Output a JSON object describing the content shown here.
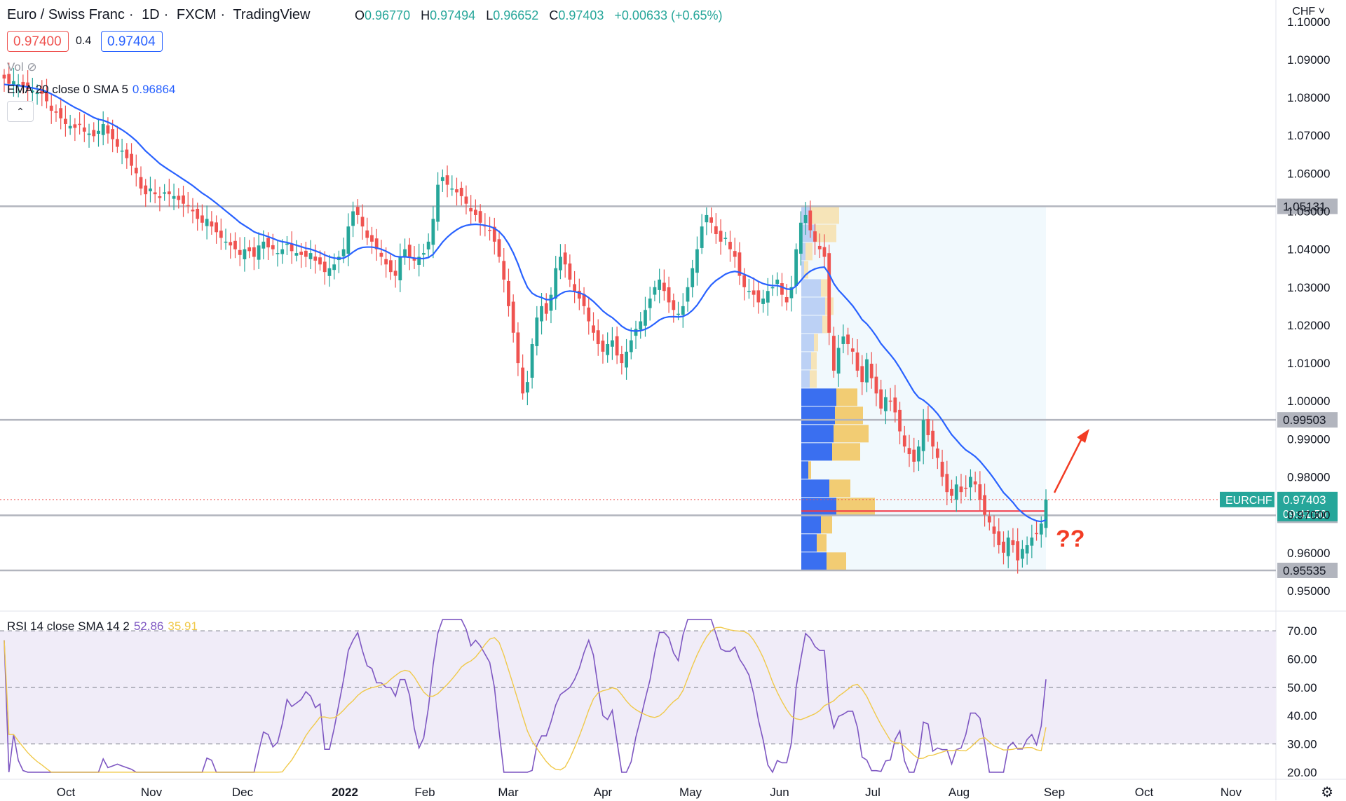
{
  "header": {
    "symbol": "Euro / Swiss Franc",
    "interval": "1D",
    "broker": "FXCM",
    "platform": "TradingView",
    "open_label": "O",
    "open": "0.96770",
    "high_label": "H",
    "high": "0.97494",
    "low_label": "L",
    "low": "0.96652",
    "close_label": "C",
    "close": "0.97403",
    "change": "+0.00633 (+0.65%)"
  },
  "trade": {
    "sell": "0.97400",
    "spread": "0.4",
    "buy": "0.97404"
  },
  "indicators": {
    "vol_label": "Vol",
    "ema_label": "EMA 20 close 0 SMA 5",
    "ema_value": "0.96864",
    "rsi_label": "RSI 14 close SMA 14 2",
    "rsi_value": "52.86",
    "rsi_sma_value": "35.91"
  },
  "currency": "CHF",
  "colors": {
    "up": "#26a69a",
    "down": "#ef5350",
    "ema": "#2962ff",
    "rsi": "#7e57c2",
    "rsi_sma": "#f0c94a",
    "annotation": "#f23c24"
  },
  "annotation_text": "??",
  "price_tag": {
    "label": "EURCHF",
    "price": "0.97403",
    "countdown": "09:41:50"
  },
  "chart_data": {
    "type": "candlestick",
    "y_axis": {
      "ticks": [
        "1.10000",
        "1.09000",
        "1.08000",
        "1.07000",
        "1.06000",
        "1.05000",
        "1.04000",
        "1.03000",
        "1.02000",
        "1.01000",
        "1.00000",
        "0.99000",
        "0.98000",
        "0.97000",
        "0.96000",
        "0.95000"
      ],
      "range": [
        0.945,
        1.102
      ]
    },
    "x_axis": {
      "ticks": [
        "Oct",
        "Nov",
        "Dec",
        "2022",
        "Feb",
        "Mar",
        "Apr",
        "May",
        "Jun",
        "Jul",
        "Aug",
        "Sep",
        "Oct",
        "Nov"
      ]
    },
    "horizontal_levels": [
      "1.05131",
      "0.99503",
      "0.96987",
      "0.95535"
    ],
    "close_series": [
      1.085,
      1.0836,
      1.0843,
      1.0835,
      1.083,
      1.0822,
      1.0818,
      1.0812,
      1.081,
      1.079,
      1.0765,
      1.076,
      1.0745,
      1.073,
      1.0725,
      1.072,
      1.0728,
      1.071,
      1.0705,
      1.0698,
      1.0712,
      1.073,
      1.0705,
      1.069,
      1.067,
      1.066,
      1.064,
      1.062,
      1.06,
      1.056,
      1.0545,
      1.056,
      1.0545,
      1.0535,
      1.055,
      1.0545,
      1.054,
      1.053,
      1.052,
      1.0515,
      1.05,
      1.048,
      1.047,
      1.048,
      1.046,
      1.0445,
      1.043,
      1.042,
      1.041,
      1.04,
      1.0385,
      1.04,
      1.0395,
      1.038,
      1.041,
      1.042,
      1.0405,
      1.04,
      1.039,
      1.04,
      1.0415,
      1.0395,
      1.039,
      1.0385,
      1.038,
      1.039,
      1.037,
      1.036,
      1.034,
      1.035,
      1.036,
      1.038,
      1.04,
      1.046,
      1.05,
      1.049,
      1.046,
      1.043,
      1.042,
      1.04,
      1.038,
      1.036,
      1.034,
      1.033,
      1.038,
      1.04,
      1.038,
      1.037,
      1.038,
      1.039,
      1.042,
      1.048,
      1.057,
      1.059,
      1.057,
      1.056,
      1.055,
      1.054,
      1.052,
      1.05,
      1.049,
      1.047,
      1.046,
      1.045,
      1.042,
      1.038,
      1.032,
      1.025,
      1.018,
      1.01,
      1.002,
      1.005,
      1.015,
      1.022,
      1.025,
      1.023,
      1.028,
      1.035,
      1.038,
      1.036,
      1.032,
      1.029,
      1.027,
      1.025,
      1.021,
      1.018,
      1.015,
      1.013,
      1.015,
      1.016,
      1.012,
      1.01,
      1.013,
      1.016,
      1.019,
      1.021,
      1.024,
      1.027,
      1.03,
      1.032,
      1.029,
      1.026,
      1.024,
      1.023,
      1.025,
      1.03,
      1.035,
      1.04,
      1.046,
      1.049,
      1.047,
      1.044,
      1.042,
      1.043,
      1.04,
      1.038,
      1.033,
      1.03,
      1.029,
      1.028,
      1.026,
      1.027,
      1.029,
      1.03,
      1.032,
      1.028,
      1.026,
      1.03,
      1.04,
      1.047,
      1.049,
      1.045,
      1.042,
      1.04,
      1.038,
      1.018,
      1.008,
      1.014,
      1.017,
      1.015,
      1.013,
      1.008,
      1.005,
      1.011,
      1.006,
      1.002,
      0.998,
      1.001,
      1.0,
      0.997,
      0.992,
      0.988,
      0.986,
      0.984,
      0.988,
      0.995,
      0.991,
      0.988,
      0.985,
      0.98,
      0.976,
      0.975,
      0.978,
      0.976,
      0.977,
      0.98,
      0.978,
      0.974,
      0.97,
      0.968,
      0.965,
      0.962,
      0.96,
      0.964,
      0.962,
      0.958,
      0.961,
      0.962,
      0.964,
      0.965,
      0.9677,
      0.97403
    ],
    "ema20_last": 0.96864,
    "rsi_axis": {
      "ticks": [
        "70.00",
        "60.00",
        "50.00",
        "40.00",
        "30.00",
        "20.00"
      ],
      "range": [
        18,
        75
      ]
    },
    "rsi_last": 52.86,
    "rsi_sma_last": 35.91
  }
}
